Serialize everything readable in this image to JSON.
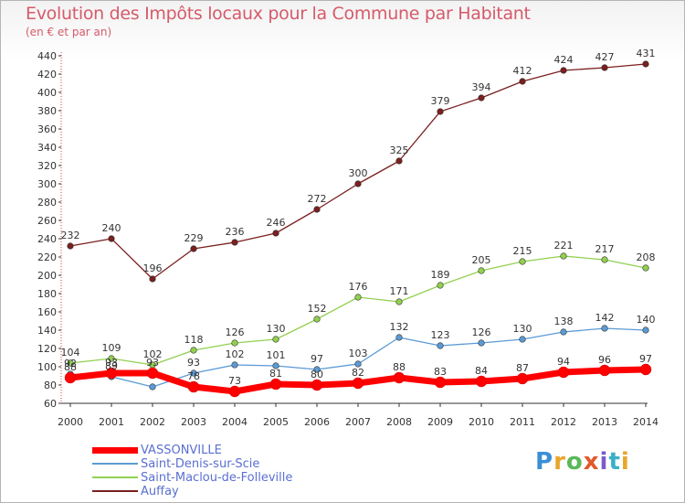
{
  "header": {
    "title": "Evolution des Impôts locaux pour la Commune par Habitant",
    "subtitle": "(en € et par an)"
  },
  "logo": {
    "text": "Proxiti",
    "colors": [
      "#3a8fd6",
      "#e8a62b",
      "#5bb85a",
      "#e05a2a",
      "#7b5bc9",
      "#3ab0c8",
      "#e8a62b"
    ]
  },
  "chart_data": {
    "type": "line",
    "title": "Evolution des Impôts locaux pour la Commune par Habitant",
    "subtitle": "(en € et par an)",
    "x": [
      "2000",
      "2001",
      "2002",
      "2003",
      "2004",
      "2005",
      "2006",
      "2007",
      "2008",
      "2009",
      "2010",
      "2011",
      "2012",
      "2013",
      "2014"
    ],
    "ylim": [
      60,
      440
    ],
    "yticks": [
      60,
      80,
      100,
      120,
      140,
      160,
      180,
      200,
      220,
      240,
      260,
      280,
      300,
      320,
      340,
      360,
      380,
      400,
      420,
      440
    ],
    "grid": false,
    "legend_position": "bottom-left",
    "series": [
      {
        "name": "VASSONVILLE",
        "color": "#ff0000",
        "values": [
          88,
          93,
          93,
          78,
          73,
          81,
          80,
          82,
          88,
          83,
          84,
          87,
          94,
          96,
          97
        ],
        "labels": [
          "88",
          "93",
          "93",
          "78",
          "73",
          "81",
          "80",
          "82",
          "88",
          "83",
          "84",
          "87",
          "94",
          "96",
          "97"
        ]
      },
      {
        "name": "Saint-Denis-sur-Scie",
        "color": "#5b9bd5",
        "values": [
          92,
          89,
          78,
          93,
          102,
          101,
          97,
          103,
          132,
          123,
          126,
          130,
          138,
          142,
          140
        ],
        "labels": [
          "92",
          "89",
          "",
          "93",
          "102",
          "101",
          "97",
          "103",
          "132",
          "123",
          "126",
          "130",
          "138",
          "142",
          "140"
        ]
      },
      {
        "name": "Saint-Maclou-de-Folleville",
        "color": "#92d050",
        "values": [
          104,
          109,
          102,
          118,
          126,
          130,
          152,
          176,
          171,
          189,
          205,
          215,
          221,
          217,
          208
        ],
        "labels": [
          "104",
          "109",
          "102",
          "118",
          "126",
          "130",
          "152",
          "176",
          "171",
          "189",
          "205",
          "215",
          "221",
          "217",
          "208"
        ]
      },
      {
        "name": "Auffay",
        "color": "#7b1f1f",
        "values": [
          232,
          240,
          196,
          229,
          236,
          246,
          272,
          300,
          325,
          379,
          394,
          412,
          424,
          427,
          431
        ],
        "labels": [
          "232",
          "240",
          "196",
          "229",
          "236",
          "246",
          "272",
          "300",
          "325",
          "379",
          "394",
          "412",
          "424",
          "427",
          "431"
        ]
      }
    ]
  }
}
